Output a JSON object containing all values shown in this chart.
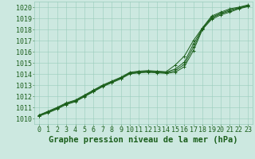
{
  "title": "Graphe pression niveau de la mer (hPa)",
  "bg_color": "#cce8e0",
  "grid_color": "#99ccbb",
  "line_color": "#1a5e1a",
  "marker_color": "#1a5e1a",
  "xlim": [
    -0.5,
    23.5
  ],
  "ylim": [
    1009.5,
    1020.5
  ],
  "yticks": [
    1010,
    1011,
    1012,
    1013,
    1014,
    1015,
    1016,
    1017,
    1018,
    1019,
    1020
  ],
  "xticks": [
    0,
    1,
    2,
    3,
    4,
    5,
    6,
    7,
    8,
    9,
    10,
    11,
    12,
    13,
    14,
    15,
    16,
    17,
    18,
    19,
    20,
    21,
    22,
    23
  ],
  "series": [
    [
      1010.3,
      1010.65,
      1011.0,
      1011.4,
      1011.65,
      1012.1,
      1012.55,
      1013.0,
      1013.35,
      1013.7,
      1014.15,
      1014.25,
      1014.3,
      1014.25,
      1014.2,
      1014.8,
      1015.6,
      1017.0,
      1018.15,
      1019.2,
      1019.55,
      1019.85,
      1020.0,
      1020.2
    ],
    [
      1010.3,
      1010.6,
      1010.95,
      1011.35,
      1011.6,
      1012.05,
      1012.5,
      1012.95,
      1013.3,
      1013.65,
      1014.1,
      1014.2,
      1014.25,
      1014.2,
      1014.15,
      1014.45,
      1015.05,
      1016.7,
      1018.1,
      1019.1,
      1019.45,
      1019.75,
      1019.95,
      1020.15
    ],
    [
      1010.25,
      1010.55,
      1010.9,
      1011.3,
      1011.55,
      1012.0,
      1012.45,
      1012.9,
      1013.25,
      1013.6,
      1014.05,
      1014.15,
      1014.2,
      1014.15,
      1014.1,
      1014.3,
      1014.85,
      1016.4,
      1018.05,
      1019.0,
      1019.4,
      1019.65,
      1019.9,
      1020.1
    ],
    [
      1010.2,
      1010.5,
      1010.85,
      1011.25,
      1011.5,
      1011.95,
      1012.4,
      1012.85,
      1013.2,
      1013.55,
      1014.0,
      1014.1,
      1014.15,
      1014.1,
      1014.05,
      1014.15,
      1014.65,
      1016.1,
      1018.0,
      1018.9,
      1019.3,
      1019.55,
      1019.85,
      1020.05
    ]
  ],
  "marker_series": [
    0,
    1,
    2,
    3
  ],
  "title_fontsize": 7.5,
  "tick_fontsize": 6,
  "tick_color": "#1a5e1a",
  "figsize": [
    3.2,
    2.0
  ],
  "dpi": 100
}
